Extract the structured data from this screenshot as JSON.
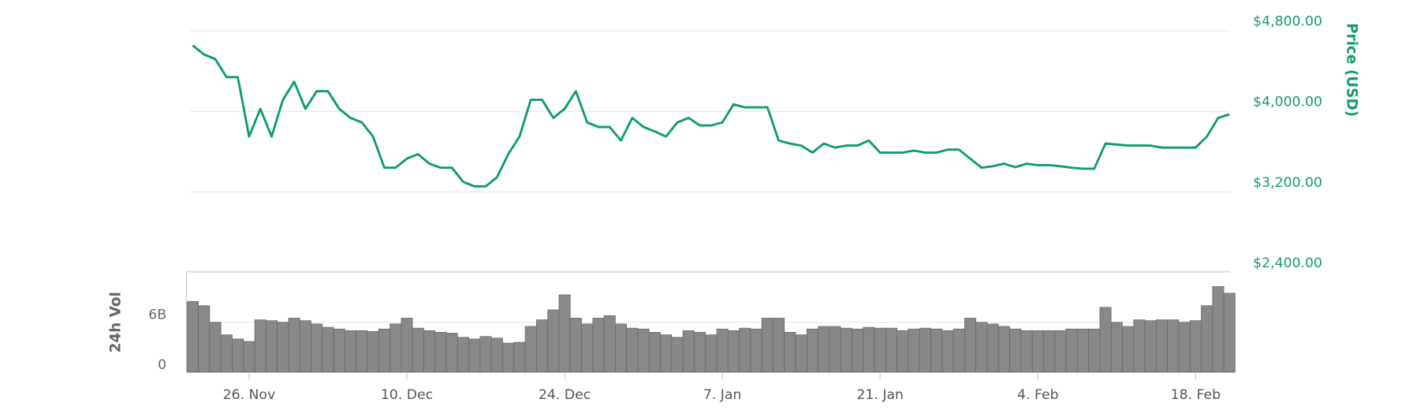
{
  "chart_data": [
    {
      "type": "line",
      "ylabel": "Price (USD)",
      "color": "#0f9b72",
      "ylim": [
        2400,
        4800
      ],
      "yticks": [
        {
          "value": 4800,
          "label": "$4,800.00"
        },
        {
          "value": 4000,
          "label": "$4,000.00"
        },
        {
          "value": 3200,
          "label": "$3,200.00"
        },
        {
          "value": 2400,
          "label": "$2,400.00"
        }
      ],
      "grid": true,
      "values": [
        4655,
        4565,
        4520,
        4340,
        4340,
        3750,
        4025,
        3750,
        4115,
        4295,
        4025,
        4200,
        4200,
        4025,
        3935,
        3890,
        3750,
        3440,
        3440,
        3530,
        3575,
        3480,
        3440,
        3440,
        3300,
        3255,
        3255,
        3345,
        3575,
        3750,
        4115,
        4115,
        3935,
        4025,
        4200,
        3890,
        3845,
        3845,
        3710,
        3935,
        3845,
        3800,
        3750,
        3890,
        3935,
        3860,
        3860,
        3890,
        4070,
        4040,
        4040,
        4040,
        3710,
        3680,
        3660,
        3590,
        3680,
        3640,
        3660,
        3660,
        3710,
        3590,
        3590,
        3590,
        3610,
        3590,
        3590,
        3620,
        3620,
        3530,
        3440,
        3455,
        3480,
        3445,
        3480,
        3465,
        3465,
        3455,
        3440,
        3430,
        3430,
        3680,
        3670,
        3660,
        3660,
        3660,
        3640,
        3640,
        3640,
        3640,
        3750,
        3935,
        3970
      ]
    },
    {
      "type": "bar",
      "ylabel": "24h Vol",
      "color": "#888888",
      "ylim": [
        0,
        12
      ],
      "yticks": [
        0,
        {
          "value": 6,
          "label": "6B"
        }
      ],
      "grid": true,
      "categories": [
        null,
        null,
        null,
        null,
        null,
        "26. Nov",
        null,
        null,
        null,
        null,
        null,
        null,
        null,
        null,
        null,
        null,
        null,
        null,
        null,
        "10. Dec",
        null,
        null,
        null,
        null,
        null,
        null,
        null,
        null,
        null,
        null,
        null,
        null,
        null,
        "24. Dec",
        null,
        null,
        null,
        null,
        null,
        null,
        null,
        null,
        null,
        null,
        null,
        null,
        null,
        "7. Jan",
        null,
        null,
        null,
        null,
        null,
        null,
        null,
        null,
        null,
        null,
        null,
        null,
        null,
        "21. Jan",
        null,
        null,
        null,
        null,
        null,
        null,
        null,
        null,
        null,
        null,
        null,
        null,
        null,
        "4. Feb",
        null,
        null,
        null,
        null,
        null,
        null,
        null,
        null,
        null,
        null,
        null,
        null,
        null,
        "18. Feb",
        null,
        null,
        null
      ],
      "values": [
        8.5,
        8,
        6,
        4.5,
        4,
        3.7,
        6.3,
        6.2,
        6,
        6.5,
        6.2,
        5.8,
        5.4,
        5.2,
        5,
        5,
        4.9,
        5.2,
        5.8,
        6.5,
        5.3,
        5,
        4.8,
        4.7,
        4.2,
        4,
        4.3,
        4.1,
        3.5,
        3.6,
        5.5,
        6.3,
        7.5,
        9.3,
        6.5,
        5.8,
        6.5,
        6.8,
        5.8,
        5.3,
        5.2,
        4.8,
        4.5,
        4.2,
        5,
        4.8,
        4.5,
        5.2,
        5,
        5.3,
        5.2,
        6.5,
        6.5,
        4.8,
        4.5,
        5.2,
        5.5,
        5.5,
        5.3,
        5.2,
        5.4,
        5.3,
        5.3,
        5,
        5.2,
        5.3,
        5.2,
        5,
        5.2,
        6.5,
        6,
        5.8,
        5.5,
        5.2,
        5,
        5,
        5,
        5,
        5.2,
        5.2,
        5.2,
        7.8,
        6,
        5.5,
        6.3,
        6.2,
        6.3,
        6.3,
        6,
        6.2,
        8,
        10.3,
        9.5
      ]
    }
  ]
}
